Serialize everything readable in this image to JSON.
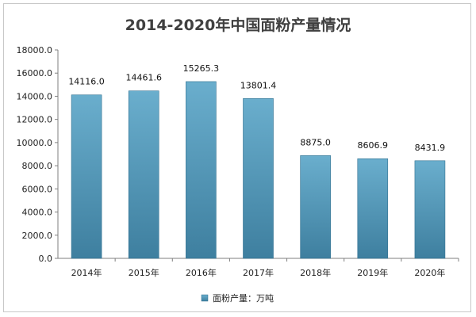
{
  "chart_data": {
    "type": "bar",
    "title": "2014-2020年中国面粉产量情况",
    "categories": [
      "2014年",
      "2015年",
      "2016年",
      "2017年",
      "2018年",
      "2019年",
      "2020年"
    ],
    "series": [
      {
        "name": "面粉产量：万吨",
        "values": [
          14116.0,
          14461.6,
          15265.3,
          13801.4,
          8875.0,
          8606.9,
          8431.9
        ],
        "labels": [
          "14116.0",
          "14461.6",
          "15265.3",
          "13801.4",
          "8875.0",
          "8606.9",
          "8431.9"
        ]
      }
    ],
    "yticks": [
      "0.0",
      "2000.0",
      "4000.0",
      "6000.0",
      "8000.0",
      "10000.0",
      "12000.0",
      "14000.0",
      "16000.0",
      "18000.0"
    ],
    "ylim": [
      0,
      18000
    ],
    "xlabel": "",
    "ylabel": "",
    "grid": false,
    "legend_position": "bottom",
    "colors": {
      "bar_top": "#6aaecd",
      "bar_bottom": "#3e7f9f",
      "bar_edge": "#2f6f8f",
      "axis": "#7f7f7f"
    }
  }
}
